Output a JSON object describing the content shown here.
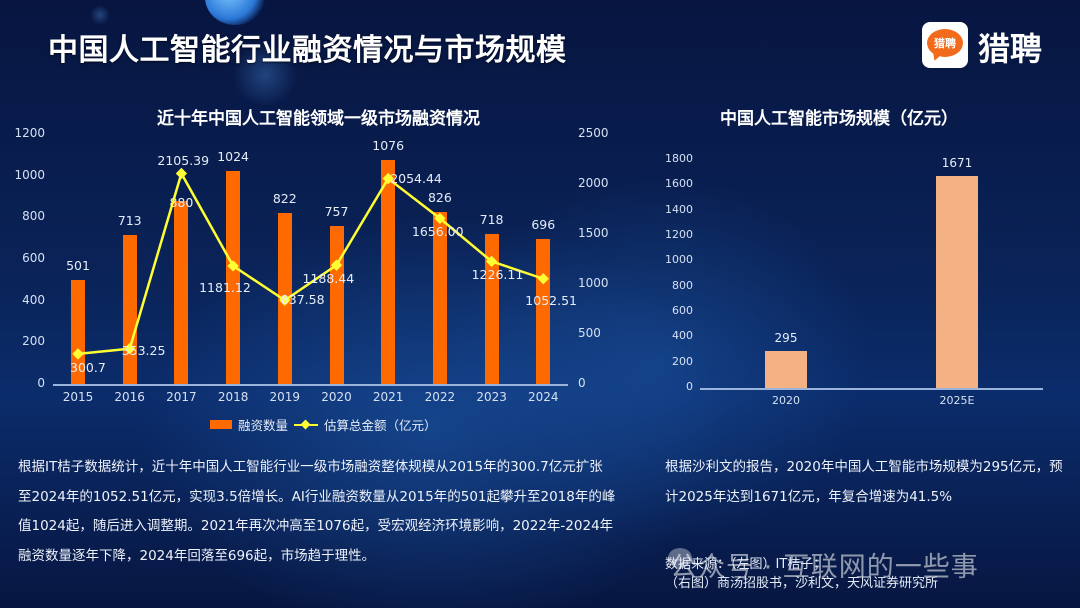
{
  "header": {
    "title": "中国人工智能行业融资情况与市场规模",
    "brand_name": "猎聘",
    "logo_text": "猎聘"
  },
  "colors": {
    "bar_primary": "#ff6a00",
    "line_series": "#ffff33",
    "bar_secondary": "#f4b183",
    "background": "#0a2358"
  },
  "left_chart": {
    "title": "近十年中国人工智能领域一级市场融资情况",
    "y_left_ticks": [
      "0",
      "200",
      "400",
      "600",
      "800",
      "1000",
      "1200"
    ],
    "y_right_ticks": [
      "0",
      "500",
      "1000",
      "1500",
      "2000",
      "2500"
    ],
    "legend": {
      "bar": "融资数量",
      "line": "估算总金额（亿元）"
    }
  },
  "right_chart": {
    "title": "中国人工智能市场规模（亿元）",
    "y_ticks": [
      "0",
      "200",
      "400",
      "600",
      "800",
      "1000",
      "1200",
      "1400",
      "1600",
      "1800"
    ]
  },
  "chart_data": [
    {
      "type": "bar",
      "combo": "bar+line (dual axis)",
      "title": "近十年中国人工智能领域一级市场融资情况",
      "categories": [
        "2015",
        "2016",
        "2017",
        "2018",
        "2019",
        "2020",
        "2021",
        "2022",
        "2023",
        "2024"
      ],
      "series": [
        {
          "name": "融资数量",
          "type": "bar",
          "axis": "left",
          "values": [
            501,
            713,
            880,
            1024,
            822,
            757,
            1076,
            826,
            718,
            696
          ]
        },
        {
          "name": "估算总金额（亿元）",
          "type": "line",
          "axis": "right",
          "values": [
            300.7,
            353.25,
            2105.39,
            1181.12,
            837.58,
            1188.44,
            2054.44,
            1656.0,
            1226.11,
            1052.51
          ]
        }
      ],
      "bar_labels": [
        "501",
        "713",
        "880",
        "1024",
        "822",
        "757",
        "1076",
        "826",
        "718",
        "696"
      ],
      "line_labels": [
        "300.7",
        "353.25",
        "2105.39",
        "1181.12",
        "837.58",
        "1188.44",
        "2054.44",
        "1656.00",
        "1226.11",
        "1052.51"
      ],
      "ylim_left": [
        0,
        1200
      ],
      "ylim_right": [
        0,
        2500
      ],
      "xlabel": "",
      "ylabel": "",
      "grid": false,
      "legend_position": "bottom"
    },
    {
      "type": "bar",
      "title": "中国人工智能市场规模（亿元）",
      "categories": [
        "2020",
        "2025E"
      ],
      "values": [
        295,
        1671
      ],
      "labels": [
        "295",
        "1671"
      ],
      "ylim": [
        0,
        1800
      ],
      "xlabel": "",
      "ylabel": "",
      "grid": false
    }
  ],
  "text": {
    "left_paragraph": "根据IT桔子数据统计，近十年中国人工智能行业一级市场融资整体规模从2015年的300.7亿元扩张至2024年的1052.51亿元，实现3.5倍增长。AI行业融资数量从2015年的501起攀升至2018年的峰值1024起，随后进入调整期。2021年再次冲高至1076起，受宏观经济环境影响，2022年-2024年融资数量逐年下降，2024年回落至696起，市场趋于理性。",
    "right_paragraph": "根据沙利文的报告，2020年中国人工智能市场规模为295亿元，预计2025年达到1671亿元，年复合增速为41.5%",
    "source_line1": "数据来源：（左图）IT桔子；",
    "source_line2": "（右图）商汤招股书，沙利文，天风证券研究所",
    "watermark": "公众号 · 互联网的一些事"
  }
}
